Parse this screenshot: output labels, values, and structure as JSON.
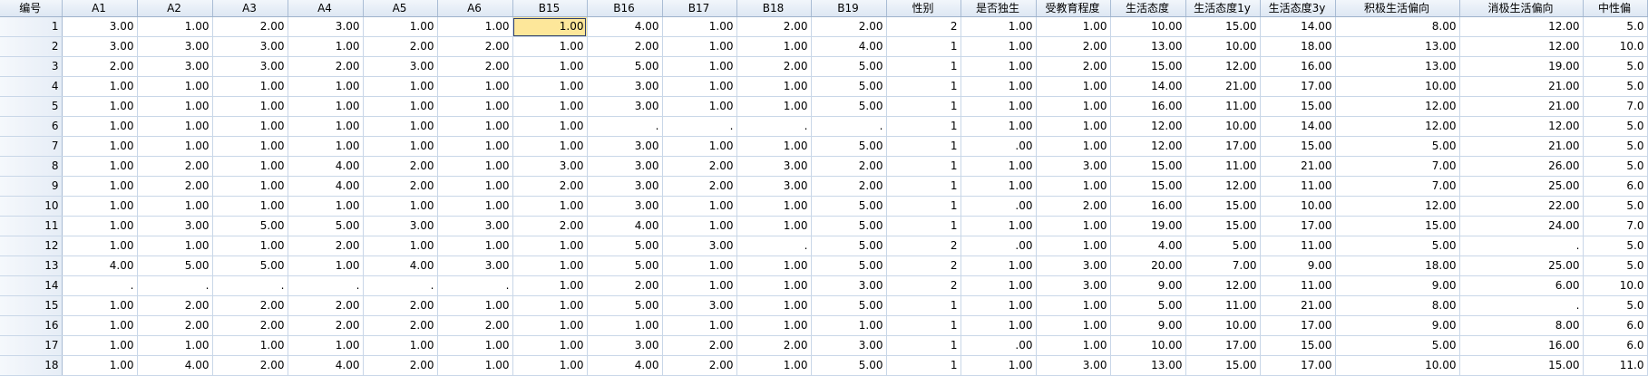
{
  "colors": {
    "header_bg": "#dde7f3",
    "grid_line": "#c9d7e8",
    "selected_cell": "#fde79a"
  },
  "columns": [
    "编号",
    "A1",
    "A2",
    "A3",
    "A4",
    "A5",
    "A6",
    "B15",
    "B16",
    "B17",
    "B18",
    "B19",
    "性别",
    "是否独生",
    "受教育程度",
    "生活态度",
    "生活态度1y",
    "生活态度3y",
    "积极生活偏向",
    "消极生活偏向",
    "中性偏"
  ],
  "selected": {
    "row": 0,
    "col": 7
  },
  "rows": [
    [
      "1",
      "3.00",
      "1.00",
      "2.00",
      "3.00",
      "1.00",
      "1.00",
      "1.00",
      "4.00",
      "1.00",
      "2.00",
      "2.00",
      "2",
      "1.00",
      "1.00",
      "10.00",
      "15.00",
      "14.00",
      "8.00",
      "12.00",
      "5.0"
    ],
    [
      "2",
      "3.00",
      "3.00",
      "3.00",
      "1.00",
      "2.00",
      "2.00",
      "1.00",
      "2.00",
      "1.00",
      "1.00",
      "4.00",
      "1",
      "1.00",
      "2.00",
      "13.00",
      "10.00",
      "18.00",
      "13.00",
      "12.00",
      "10.0"
    ],
    [
      "3",
      "2.00",
      "3.00",
      "3.00",
      "2.00",
      "3.00",
      "2.00",
      "1.00",
      "5.00",
      "1.00",
      "2.00",
      "5.00",
      "1",
      "1.00",
      "2.00",
      "15.00",
      "12.00",
      "16.00",
      "13.00",
      "19.00",
      "5.0"
    ],
    [
      "4",
      "1.00",
      "1.00",
      "1.00",
      "1.00",
      "1.00",
      "1.00",
      "1.00",
      "3.00",
      "1.00",
      "1.00",
      "5.00",
      "1",
      "1.00",
      "1.00",
      "14.00",
      "21.00",
      "17.00",
      "10.00",
      "21.00",
      "5.0"
    ],
    [
      "5",
      "1.00",
      "1.00",
      "1.00",
      "1.00",
      "1.00",
      "1.00",
      "1.00",
      "3.00",
      "1.00",
      "1.00",
      "5.00",
      "1",
      "1.00",
      "1.00",
      "16.00",
      "11.00",
      "15.00",
      "12.00",
      "21.00",
      "7.0"
    ],
    [
      "6",
      "1.00",
      "1.00",
      "1.00",
      "1.00",
      "1.00",
      "1.00",
      "1.00",
      ".",
      ".",
      ".",
      ".",
      "1",
      "1.00",
      "1.00",
      "12.00",
      "10.00",
      "14.00",
      "12.00",
      "12.00",
      "5.0"
    ],
    [
      "7",
      "1.00",
      "1.00",
      "1.00",
      "1.00",
      "1.00",
      "1.00",
      "1.00",
      "3.00",
      "1.00",
      "1.00",
      "5.00",
      "1",
      ".00",
      "1.00",
      "12.00",
      "17.00",
      "15.00",
      "5.00",
      "21.00",
      "5.0"
    ],
    [
      "8",
      "1.00",
      "2.00",
      "1.00",
      "4.00",
      "2.00",
      "1.00",
      "3.00",
      "3.00",
      "2.00",
      "3.00",
      "2.00",
      "1",
      "1.00",
      "3.00",
      "15.00",
      "11.00",
      "21.00",
      "7.00",
      "26.00",
      "5.0"
    ],
    [
      "9",
      "1.00",
      "2.00",
      "1.00",
      "4.00",
      "2.00",
      "1.00",
      "2.00",
      "3.00",
      "2.00",
      "3.00",
      "2.00",
      "1",
      "1.00",
      "1.00",
      "15.00",
      "12.00",
      "11.00",
      "7.00",
      "25.00",
      "6.0"
    ],
    [
      "10",
      "1.00",
      "1.00",
      "1.00",
      "1.00",
      "1.00",
      "1.00",
      "1.00",
      "3.00",
      "1.00",
      "1.00",
      "5.00",
      "1",
      ".00",
      "2.00",
      "16.00",
      "15.00",
      "10.00",
      "12.00",
      "22.00",
      "5.0"
    ],
    [
      "11",
      "1.00",
      "3.00",
      "5.00",
      "5.00",
      "3.00",
      "3.00",
      "2.00",
      "4.00",
      "1.00",
      "1.00",
      "5.00",
      "1",
      "1.00",
      "1.00",
      "19.00",
      "15.00",
      "17.00",
      "15.00",
      "24.00",
      "7.0"
    ],
    [
      "12",
      "1.00",
      "1.00",
      "1.00",
      "2.00",
      "1.00",
      "1.00",
      "1.00",
      "5.00",
      "3.00",
      ".",
      "5.00",
      "2",
      ".00",
      "1.00",
      "4.00",
      "5.00",
      "11.00",
      "5.00",
      ".",
      "5.0"
    ],
    [
      "13",
      "4.00",
      "5.00",
      "5.00",
      "1.00",
      "4.00",
      "3.00",
      "1.00",
      "5.00",
      "1.00",
      "1.00",
      "5.00",
      "2",
      "1.00",
      "3.00",
      "20.00",
      "7.00",
      "9.00",
      "18.00",
      "25.00",
      "5.0"
    ],
    [
      "14",
      ".",
      ".",
      ".",
      ".",
      ".",
      ".",
      "1.00",
      "2.00",
      "1.00",
      "1.00",
      "3.00",
      "2",
      "1.00",
      "3.00",
      "9.00",
      "12.00",
      "11.00",
      "9.00",
      "6.00",
      "10.0"
    ],
    [
      "15",
      "1.00",
      "2.00",
      "2.00",
      "2.00",
      "2.00",
      "1.00",
      "1.00",
      "5.00",
      "3.00",
      "1.00",
      "5.00",
      "1",
      "1.00",
      "1.00",
      "5.00",
      "11.00",
      "21.00",
      "8.00",
      ".",
      "5.0"
    ],
    [
      "16",
      "1.00",
      "2.00",
      "2.00",
      "2.00",
      "2.00",
      "2.00",
      "1.00",
      "1.00",
      "1.00",
      "1.00",
      "1.00",
      "1",
      "1.00",
      "1.00",
      "9.00",
      "10.00",
      "17.00",
      "9.00",
      "8.00",
      "6.0"
    ],
    [
      "17",
      "1.00",
      "1.00",
      "1.00",
      "1.00",
      "1.00",
      "1.00",
      "1.00",
      "3.00",
      "2.00",
      "2.00",
      "3.00",
      "1",
      ".00",
      "1.00",
      "10.00",
      "17.00",
      "15.00",
      "5.00",
      "16.00",
      "6.0"
    ],
    [
      "18",
      "1.00",
      "4.00",
      "2.00",
      "4.00",
      "2.00",
      "1.00",
      "1.00",
      "4.00",
      "2.00",
      "1.00",
      "5.00",
      "1",
      "1.00",
      "3.00",
      "13.00",
      "15.00",
      "17.00",
      "10.00",
      "15.00",
      "11.0"
    ]
  ]
}
